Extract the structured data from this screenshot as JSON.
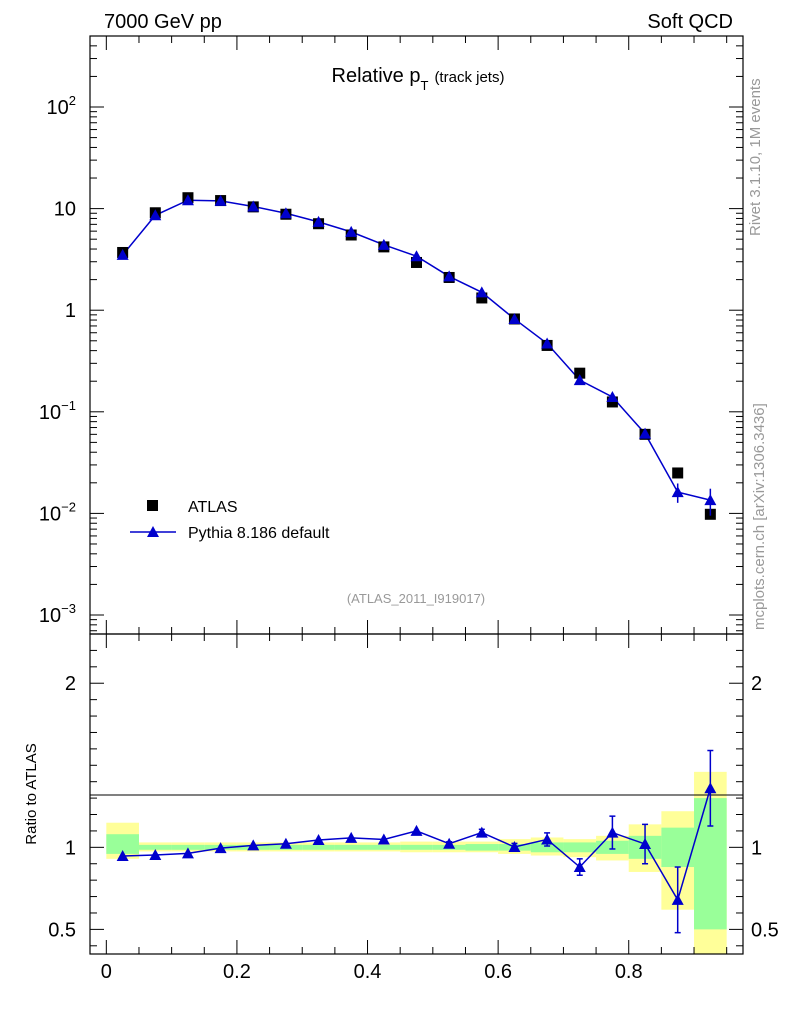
{
  "header": {
    "left": "7000 GeV pp",
    "right": "Soft QCD"
  },
  "side": {
    "version": "Rivet 3.1.10,  1M events",
    "source": "mcplots.cern.ch [arXiv:1306.3436]"
  },
  "title": {
    "main": "Relative p",
    "sub": "T",
    "extra": "(track jets)"
  },
  "analysis_id": "(ATLAS_2011_I919017)",
  "colors": {
    "data": "#000000",
    "mc": "#0000cc",
    "band_inner": "#99ff99",
    "band_outer": "#ffff99"
  },
  "chart_data": [
    {
      "type": "scatter",
      "scale": "log",
      "ylim": [
        0.00065,
        500
      ],
      "xlim": [
        -0.025,
        0.975
      ],
      "y_ticks": [
        {
          "value": 0.001,
          "base": "10",
          "exp": "−3"
        },
        {
          "value": 0.01,
          "base": "10",
          "exp": "−2"
        },
        {
          "value": 0.1,
          "base": "10",
          "exp": "−1"
        },
        {
          "value": 1,
          "base": "1",
          "exp": ""
        },
        {
          "value": 10,
          "base": "10",
          "exp": ""
        },
        {
          "value": 100,
          "base": "10",
          "exp": "2"
        }
      ],
      "legend": [
        {
          "name": "ATLAS",
          "marker": "square"
        },
        {
          "name": "Pythia 8.186 default",
          "marker": "triangle"
        }
      ],
      "series": [
        {
          "name": "ATLAS",
          "x": [
            0.025,
            0.075,
            0.125,
            0.175,
            0.225,
            0.275,
            0.325,
            0.375,
            0.425,
            0.475,
            0.525,
            0.575,
            0.625,
            0.675,
            0.725,
            0.775,
            0.825,
            0.875,
            0.925
          ],
          "y": [
            3.7,
            9.1,
            12.8,
            12.0,
            10.4,
            8.8,
            7.1,
            5.5,
            4.2,
            2.95,
            2.1,
            1.32,
            0.82,
            0.45,
            0.24,
            0.125,
            0.06,
            0.025,
            0.0098
          ]
        },
        {
          "name": "Pythia 8.186 default",
          "x": [
            0.025,
            0.075,
            0.125,
            0.175,
            0.225,
            0.275,
            0.325,
            0.375,
            0.425,
            0.475,
            0.525,
            0.575,
            0.625,
            0.675,
            0.725,
            0.775,
            0.825,
            0.875,
            0.925
          ],
          "y": [
            3.5,
            8.6,
            12.1,
            11.9,
            10.5,
            9.0,
            7.4,
            5.9,
            4.4,
            3.4,
            2.15,
            1.5,
            0.82,
            0.47,
            0.205,
            0.14,
            0.061,
            0.0162,
            0.0135
          ],
          "yerr": [
            0,
            0,
            0,
            0,
            0,
            0,
            0,
            0,
            0,
            0,
            0,
            0,
            0,
            0,
            0,
            0,
            0.006,
            0.0035,
            0.004
          ]
        }
      ]
    },
    {
      "type": "line",
      "ylabel": "Ratio to ATLAS",
      "ylim": [
        0.35,
        2.3
      ],
      "xlim": [
        -0.025,
        0.975
      ],
      "x_ticks": [
        0,
        0.2,
        0.4,
        0.6,
        0.8
      ],
      "x_tick_labels": [
        "0",
        "0.2",
        "0.4",
        "0.6",
        "0.8"
      ],
      "y_ticks": [
        0.5,
        1,
        2
      ],
      "y_tick_labels": [
        "0.5",
        "1",
        "2"
      ],
      "bands": {
        "edges": [
          0,
          0.05,
          0.1,
          0.15,
          0.2,
          0.25,
          0.3,
          0.35,
          0.4,
          0.45,
          0.5,
          0.55,
          0.6,
          0.65,
          0.7,
          0.75,
          0.8,
          0.85,
          0.9,
          0.95
        ],
        "inner": [
          [
            0.96,
            1.08
          ],
          [
            0.985,
            1.015
          ],
          [
            0.985,
            1.015
          ],
          [
            0.985,
            1.015
          ],
          [
            0.985,
            1.015
          ],
          [
            0.985,
            1.015
          ],
          [
            0.985,
            1.015
          ],
          [
            0.985,
            1.015
          ],
          [
            0.985,
            1.015
          ],
          [
            0.985,
            1.015
          ],
          [
            0.985,
            1.015
          ],
          [
            0.98,
            1.02
          ],
          [
            0.98,
            1.02
          ],
          [
            0.97,
            1.03
          ],
          [
            0.97,
            1.03
          ],
          [
            0.96,
            1.04
          ],
          [
            0.93,
            1.07
          ],
          [
            0.88,
            1.12
          ],
          [
            0.5,
            1.3
          ]
        ],
        "outer": [
          [
            0.93,
            1.15
          ],
          [
            0.975,
            1.03
          ],
          [
            0.975,
            1.03
          ],
          [
            0.975,
            1.03
          ],
          [
            0.975,
            1.03
          ],
          [
            0.975,
            1.03
          ],
          [
            0.975,
            1.03
          ],
          [
            0.975,
            1.03
          ],
          [
            0.975,
            1.03
          ],
          [
            0.97,
            1.035
          ],
          [
            0.97,
            1.035
          ],
          [
            0.97,
            1.035
          ],
          [
            0.96,
            1.05
          ],
          [
            0.95,
            1.06
          ],
          [
            0.94,
            1.05
          ],
          [
            0.92,
            1.07
          ],
          [
            0.85,
            1.14
          ],
          [
            0.62,
            1.22
          ],
          [
            0.3,
            1.46
          ]
        ]
      },
      "series": [
        {
          "name": "Pythia 8.186 default",
          "x": [
            0.025,
            0.075,
            0.125,
            0.175,
            0.225,
            0.275,
            0.325,
            0.375,
            0.425,
            0.475,
            0.525,
            0.575,
            0.625,
            0.675,
            0.725,
            0.775,
            0.825,
            0.875,
            0.925
          ],
          "y": [
            0.947,
            0.953,
            0.963,
            0.995,
            1.012,
            1.022,
            1.045,
            1.058,
            1.048,
            1.1,
            1.022,
            1.09,
            1.002,
            1.048,
            0.88,
            1.09,
            1.02,
            0.68,
            1.36
          ],
          "yerr": [
            0,
            0,
            0,
            0,
            0,
            0,
            0,
            0,
            0,
            0,
            0.012,
            0.02,
            0.022,
            0.04,
            0.05,
            0.1,
            0.12,
            0.2,
            0.23
          ]
        }
      ]
    }
  ]
}
